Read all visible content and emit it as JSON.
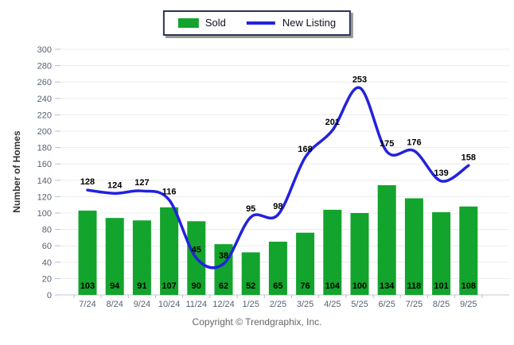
{
  "legend": {
    "items": [
      {
        "label": "Sold",
        "type": "bar",
        "color": "#12a42c"
      },
      {
        "label": "New Listing",
        "type": "line",
        "color": "#2222dd"
      }
    ]
  },
  "footer": {
    "copyright": "Copyright © Trendgraphix, Inc."
  },
  "chart_data": {
    "type": "bar+line",
    "title": "",
    "xlabel": "",
    "ylabel": "Number of Homes",
    "categories": [
      "7/24",
      "8/24",
      "9/24",
      "10/24",
      "11/24",
      "12/24",
      "1/25",
      "2/25",
      "3/25",
      "4/25",
      "5/25",
      "6/25",
      "7/25",
      "8/25",
      "9/25"
    ],
    "series": [
      {
        "name": "Sold",
        "type": "bar",
        "color": "#12a42c",
        "values": [
          103,
          94,
          91,
          107,
          90,
          62,
          52,
          65,
          76,
          104,
          100,
          134,
          118,
          101,
          108
        ]
      },
      {
        "name": "New Listing",
        "type": "line",
        "color": "#2222dd",
        "values": [
          128,
          124,
          127,
          116,
          45,
          38,
          95,
          98,
          168,
          201,
          253,
          175,
          176,
          139,
          158
        ]
      }
    ],
    "ylim": [
      0,
      300
    ],
    "ytick_step": 20,
    "grid": true,
    "legend_position": "top-center",
    "line_style": "smooth"
  }
}
